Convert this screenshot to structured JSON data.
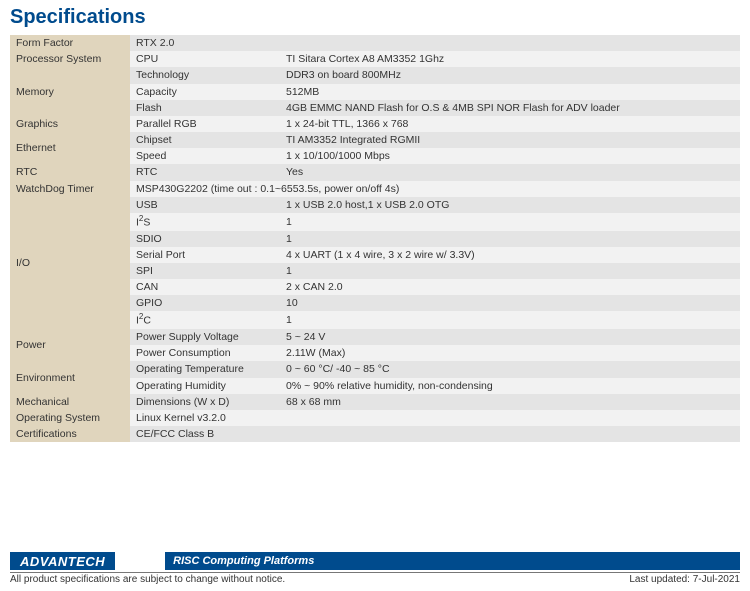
{
  "title": "Specifications",
  "colors": {
    "brand_blue": "#004b8d",
    "cat_bg": "#e0d5bd",
    "row_light": "#f2f2f2",
    "row_dark": "#e4e4e4"
  },
  "rows": [
    {
      "cat": "Form Factor",
      "cat_span": 1,
      "sub": "",
      "val": "RTX 2.0",
      "shade": "dark",
      "merge_sub": true
    },
    {
      "cat": "Processor System",
      "cat_span": 1,
      "sub": "CPU",
      "val": "TI Sitara Cortex A8 AM3352 1Ghz",
      "shade": "light"
    },
    {
      "cat": "Memory",
      "cat_span": 3,
      "sub": "Technology",
      "val": "DDR3 on board 800MHz",
      "shade": "dark"
    },
    {
      "sub": "Capacity",
      "val": "512MB",
      "shade": "light"
    },
    {
      "sub": "Flash",
      "val": "4GB EMMC NAND Flash for O.S & 4MB SPI NOR Flash for ADV loader",
      "shade": "dark"
    },
    {
      "cat": "Graphics",
      "cat_span": 1,
      "sub": "Parallel RGB",
      "val": "1 x 24-bit TTL, 1366 x 768",
      "shade": "light"
    },
    {
      "cat": "Ethernet",
      "cat_span": 2,
      "sub": "Chipset",
      "val": "TI AM3352 Integrated RGMII",
      "shade": "dark"
    },
    {
      "sub": "Speed",
      "val": "1 x 10/100/1000 Mbps",
      "shade": "light"
    },
    {
      "cat": "RTC",
      "cat_span": 1,
      "sub": "RTC",
      "val": "Yes",
      "shade": "dark"
    },
    {
      "cat": "WatchDog Timer",
      "cat_span": 1,
      "sub": "",
      "val": "MSP430G2202 (time out : 0.1~6553.5s, power on/off 4s)",
      "shade": "light",
      "merge_sub": true
    },
    {
      "cat": "I/O",
      "cat_span": 8,
      "sub": "USB",
      "val": "1 x USB 2.0 host,1 x USB 2.0 OTG",
      "shade": "dark"
    },
    {
      "sub": "I²S",
      "val": "1",
      "shade": "light"
    },
    {
      "sub": "SDIO",
      "val": "1",
      "shade": "dark"
    },
    {
      "sub": "Serial Port",
      "val": "4 x UART (1 x 4 wire, 3 x 2 wire w/ 3.3V)",
      "shade": "light"
    },
    {
      "sub": "SPI",
      "val": "1",
      "shade": "dark"
    },
    {
      "sub": "CAN",
      "val": "2 x CAN 2.0",
      "shade": "light"
    },
    {
      "sub": "GPIO",
      "val": "10",
      "shade": "dark"
    },
    {
      "sub": "I²C",
      "val": "1",
      "shade": "light"
    },
    {
      "cat": "Power",
      "cat_span": 2,
      "sub": "Power Supply Voltage",
      "val": "5 ~ 24 V",
      "shade": "dark"
    },
    {
      "sub": "Power Consumption",
      "val": "2.11W (Max)",
      "shade": "light"
    },
    {
      "cat": "Environment",
      "cat_span": 2,
      "sub": "Operating Temperature",
      "val": "0 ~ 60 °C/ -40 ~ 85 °C",
      "shade": "dark"
    },
    {
      "sub": "Operating Humidity",
      "val": "0% ~ 90% relative humidity, non-condensing",
      "shade": "light"
    },
    {
      "cat": "Mechanical",
      "cat_span": 1,
      "sub": "Dimensions (W x D)",
      "val": "68 x 68 mm",
      "shade": "dark"
    },
    {
      "cat": "Operating System",
      "cat_span": 1,
      "sub": "",
      "val": "Linux Kernel v3.2.0",
      "shade": "light",
      "merge_sub": true
    },
    {
      "cat": "Certifications",
      "cat_span": 1,
      "sub": "",
      "val": "CE/FCC Class B",
      "shade": "dark",
      "merge_sub": true
    }
  ],
  "footer": {
    "brand": "ADVANTECH",
    "platform": "RISC Computing Platforms",
    "disclaimer": "All product specifications are subject to change without notice.",
    "updated": "Last updated: 7-Jul-2021"
  }
}
